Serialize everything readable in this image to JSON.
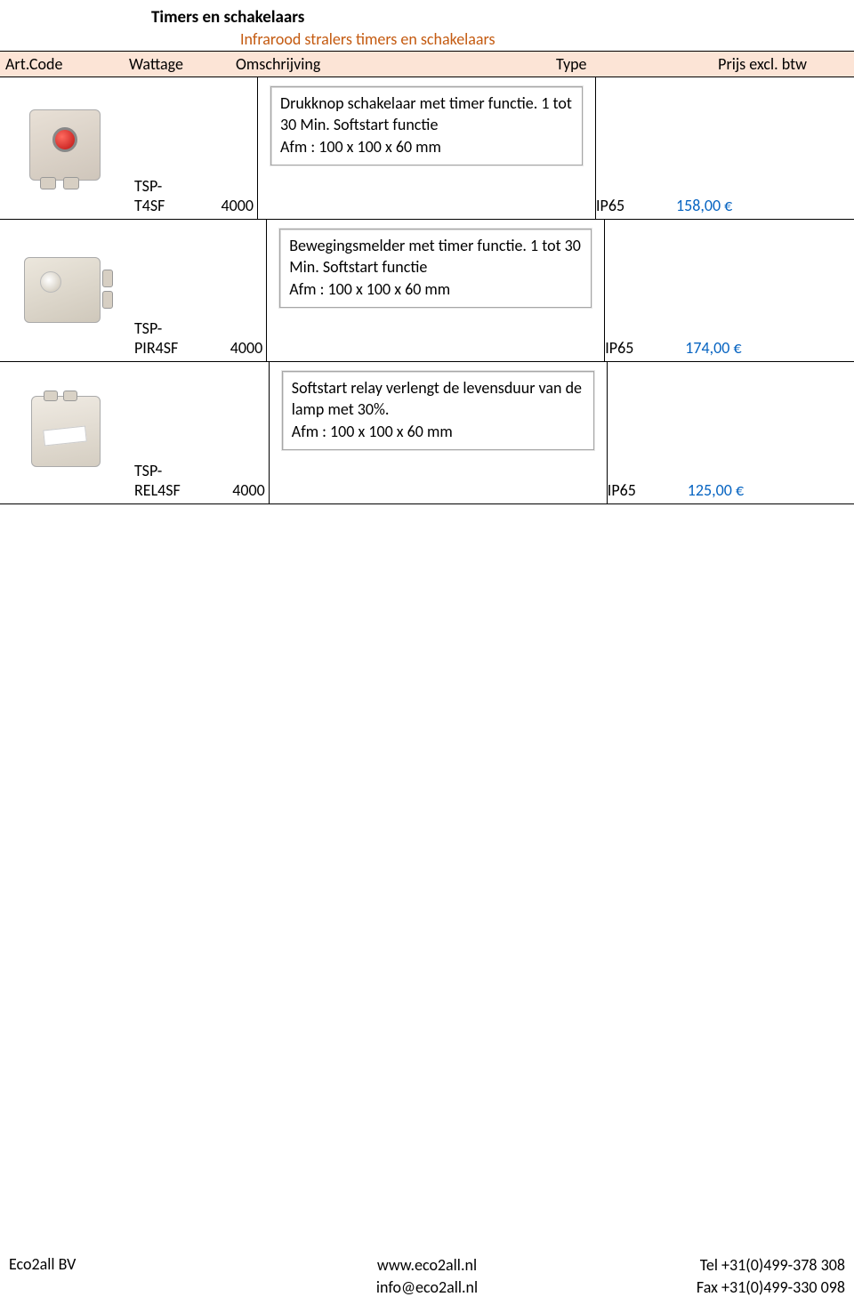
{
  "page": {
    "title": "Timers en schakelaars",
    "subtitle": "Infrarood stralers timers en schakelaars"
  },
  "columns": {
    "code": "Art.Code",
    "wattage": "Wattage",
    "description": "Omschrijving",
    "type": "Type",
    "price": "Prijs excl. btw"
  },
  "products": [
    {
      "code": "TSP-T4SF",
      "wattage": "4000",
      "description": "Drukknop schakelaar met timer functie. 1 tot 30 Min. Softstart functie\nAfm : 100 x 100 x 60 mm",
      "type": "IP65",
      "price": "158,00 €",
      "img": "push"
    },
    {
      "code": "TSP-PIR4SF",
      "wattage": "4000",
      "description": "Bewegingsmelder met timer functie. 1 tot 30 Min. Softstart functie\nAfm : 100 x 100 x 60 mm",
      "type": "IP65",
      "price": "174,00 €",
      "img": "pir"
    },
    {
      "code": "TSP-REL4SF",
      "wattage": "4000",
      "description": "Softstart relay verlengt de levensduur van de lamp met 30%.\nAfm : 100 x 100 x 60 mm",
      "type": "IP65",
      "price": "125,00 €",
      "img": "relay"
    }
  ],
  "footer": {
    "company": "Eco2all BV",
    "website": "www.eco2all.nl",
    "email": "info@eco2all.nl",
    "tel": "Tel +31(0)499-378 308",
    "fax": "Fax +31(0)499-330 098"
  }
}
